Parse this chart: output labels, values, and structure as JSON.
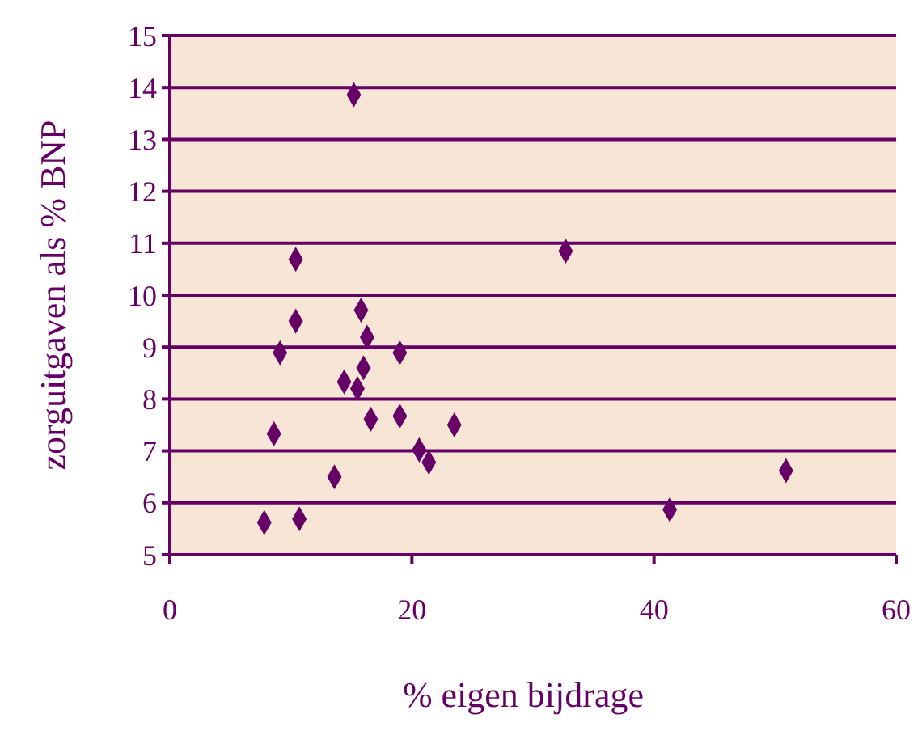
{
  "chart_data": {
    "type": "scatter",
    "xlabel": "% eigen bijdrage",
    "ylabel": "zorguitgaven als % BNP",
    "x": [
      15.2,
      10.4,
      10.4,
      15.8,
      16.3,
      9.1,
      19.0,
      16.0,
      14.4,
      15.5,
      16.6,
      19.0,
      23.5,
      8.6,
      20.6,
      21.4,
      13.6,
      7.8,
      10.7,
      32.7,
      41.3,
      50.9
    ],
    "values": [
      13.86,
      10.69,
      9.5,
      9.71,
      9.19,
      8.89,
      8.89,
      8.6,
      8.33,
      8.2,
      7.61,
      7.67,
      7.5,
      7.33,
      7.02,
      6.78,
      6.5,
      5.62,
      5.69,
      10.85,
      5.87,
      6.62
    ],
    "color": "#660066",
    "marker": "diamond",
    "xlim": [
      0,
      60
    ],
    "xticks": [
      0,
      20,
      40,
      60
    ],
    "ylim": [
      5,
      15
    ],
    "yticks": [
      5,
      6,
      7,
      8,
      9,
      10,
      11,
      12,
      13,
      14,
      15
    ],
    "grid": "y"
  }
}
